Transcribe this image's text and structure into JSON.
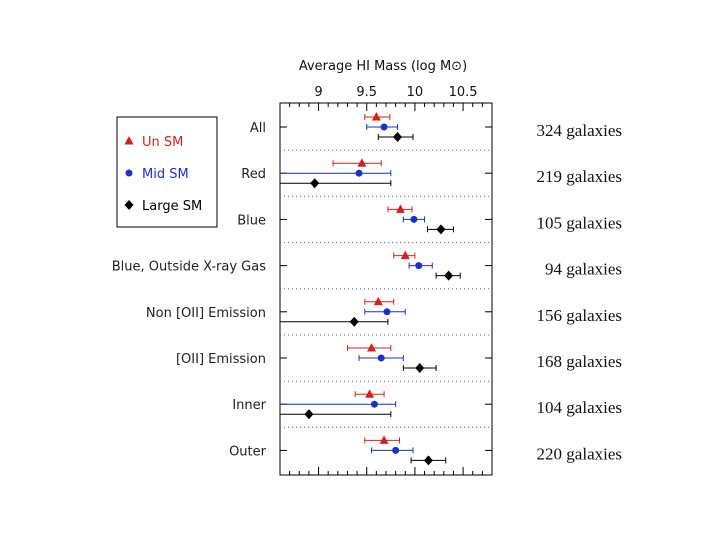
{
  "chart_data": {
    "type": "scatter",
    "title": "Average HI Mass (log M⊙)",
    "xlabel": "Average HI Mass (log M⊙)",
    "ylabel": "",
    "xlim": [
      8.6,
      10.8
    ],
    "xticks": [
      9,
      9.5,
      10,
      10.5
    ],
    "xtick_labels": [
      "9",
      "9.5",
      "10",
      "10.5"
    ],
    "categories": [
      "All",
      "Red",
      "Blue",
      "Blue, Outside X-ray Gas",
      "Non [OII] Emission",
      "[OII] Emission",
      "Inner",
      "Outer"
    ],
    "counts": [
      "324 galaxies",
      "219 galaxies",
      "105 galaxies",
      "94 galaxies",
      "156 galaxies",
      "168 galaxies",
      "104 galaxies",
      "220 galaxies"
    ],
    "series": [
      {
        "name": "Un SM",
        "marker": "triangle",
        "color": "#d62020",
        "values": [
          9.6,
          9.45,
          9.85,
          9.9,
          9.62,
          9.55,
          9.53,
          9.68
        ],
        "err_low": [
          9.48,
          9.15,
          9.72,
          9.78,
          9.48,
          9.3,
          9.38,
          9.48
        ],
        "err_high": [
          9.74,
          9.65,
          9.97,
          10.0,
          9.78,
          9.75,
          9.68,
          9.84
        ]
      },
      {
        "name": "Mid SM",
        "marker": "circle",
        "color": "#1a2fd0",
        "values": [
          9.68,
          9.42,
          9.99,
          10.04,
          9.71,
          9.65,
          9.58,
          9.8
        ],
        "err_low": [
          9.5,
          8.6,
          9.88,
          9.94,
          9.48,
          9.42,
          8.6,
          9.55
        ],
        "err_high": [
          9.82,
          9.75,
          10.1,
          10.18,
          9.9,
          9.88,
          9.8,
          9.98
        ]
      },
      {
        "name": "Large SM",
        "marker": "diamond",
        "color": "#000000",
        "values": [
          9.82,
          8.96,
          10.27,
          10.35,
          9.37,
          10.05,
          8.9,
          10.14
        ],
        "err_low": [
          9.62,
          8.6,
          10.13,
          10.22,
          8.6,
          9.88,
          8.6,
          9.96
        ],
        "err_high": [
          9.98,
          9.75,
          10.4,
          10.47,
          9.72,
          10.22,
          9.75,
          10.32
        ]
      }
    ],
    "legend": [
      "Un SM",
      "Mid SM",
      "Large SM"
    ],
    "legend_position": "left",
    "grid": false
  }
}
